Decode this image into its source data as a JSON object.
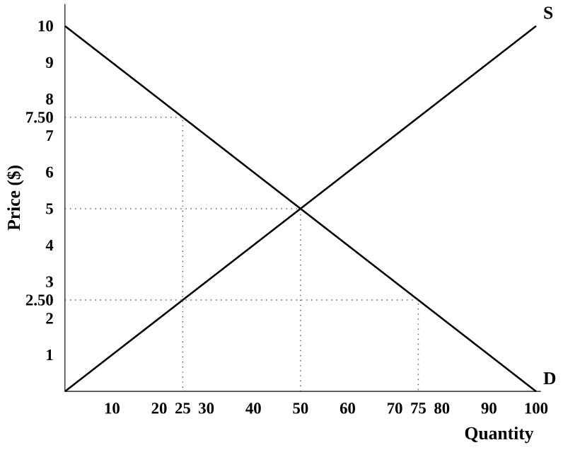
{
  "chart_data": {
    "type": "line",
    "xlabel": "Quantity",
    "ylabel": "Price ($)",
    "xlim": [
      0,
      101
    ],
    "ylim": [
      0,
      10.6
    ],
    "xticks": [
      10,
      20,
      25,
      30,
      40,
      50,
      60,
      70,
      75,
      80,
      90,
      100
    ],
    "yticks": [
      1,
      2,
      {
        "value": 2.5,
        "label": "2.50"
      },
      3,
      4,
      5,
      6,
      7,
      {
        "value": 7.5,
        "label": "7.50"
      },
      8,
      9,
      10
    ],
    "grid": false,
    "legend": false,
    "marker": "none",
    "line_style": "solid",
    "series": [
      {
        "name": "S",
        "color": "#000000",
        "x": [
          0,
          100
        ],
        "values": [
          0,
          10
        ]
      },
      {
        "name": "D",
        "color": "#000000",
        "x": [
          0,
          100
        ],
        "values": [
          10,
          0
        ]
      },
      {
        "color": "#555555",
        "line_style": "dotted",
        "x": [
          0,
          25,
          25
        ],
        "values": [
          7.5,
          7.5,
          0
        ]
      },
      {
        "color": "#555555",
        "line_style": "dotted",
        "x": [
          0,
          50,
          50
        ],
        "values": [
          5,
          5,
          0
        ]
      },
      {
        "color": "#555555",
        "line_style": "dotted",
        "x": [
          0,
          75,
          75
        ],
        "values": [
          2.5,
          2.5,
          0
        ]
      }
    ]
  }
}
